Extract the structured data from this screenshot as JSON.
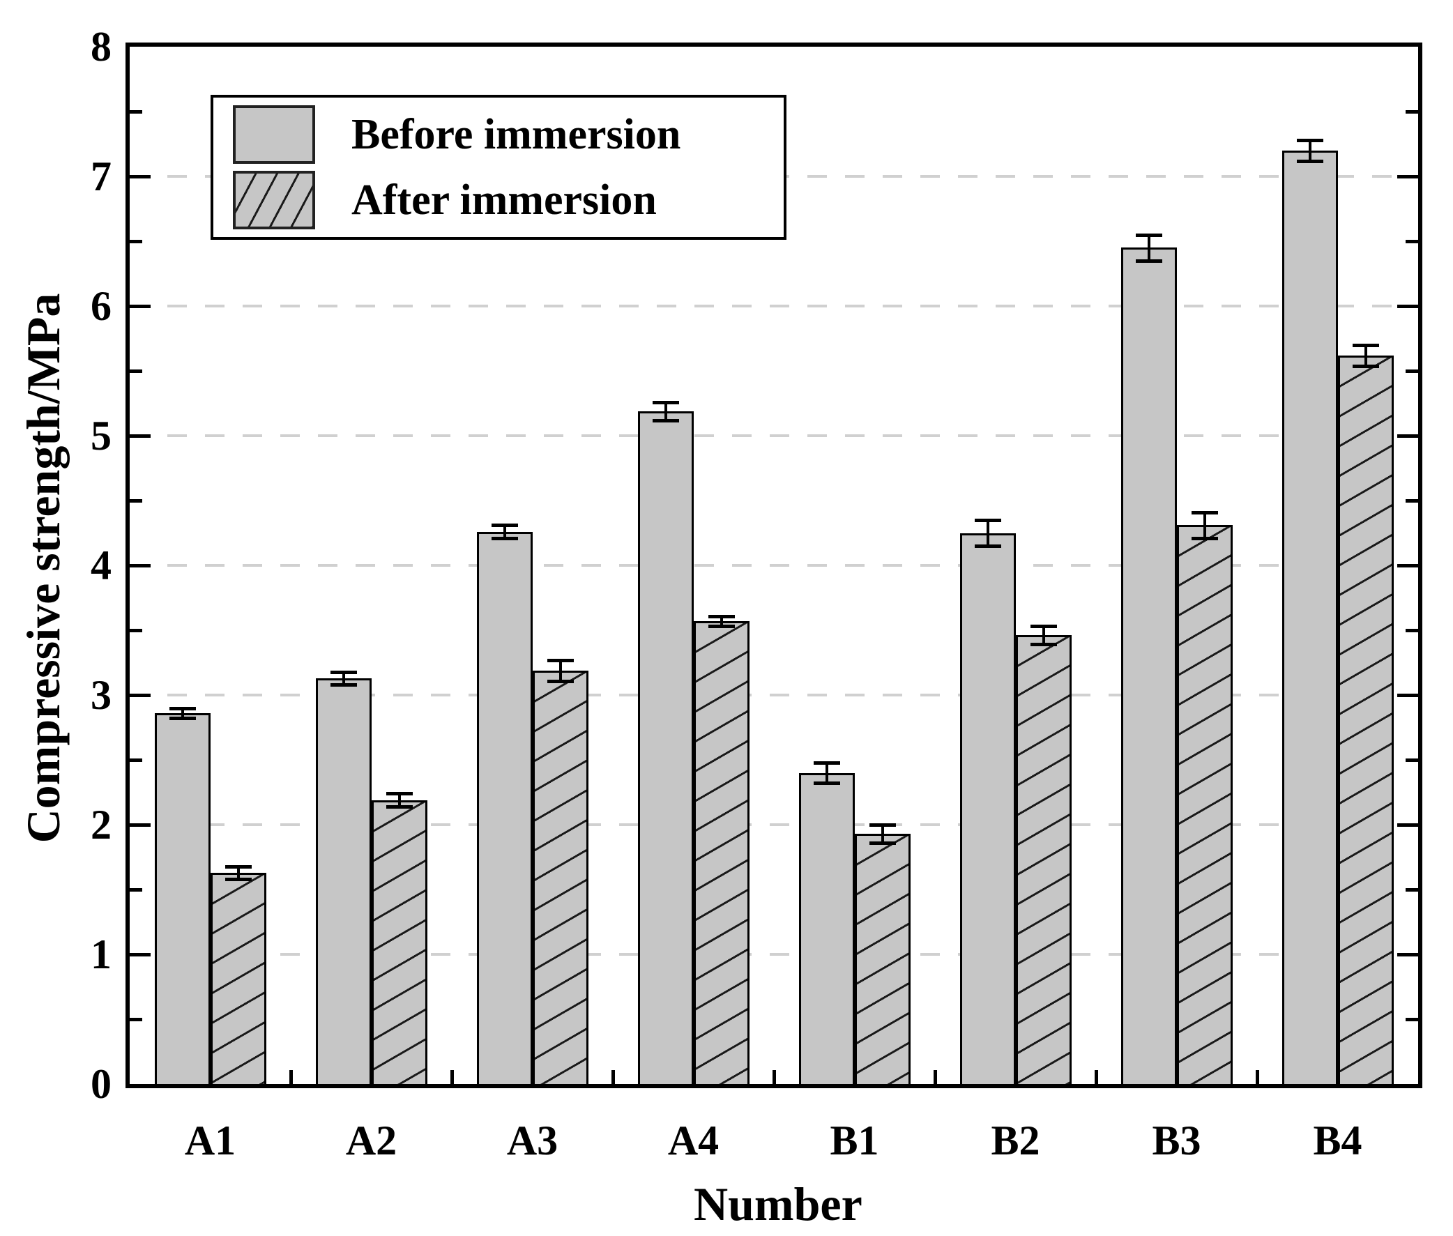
{
  "chart_data": {
    "type": "bar",
    "title": "",
    "xlabel": "Number",
    "ylabel": "Compressive strength/MPa",
    "categories": [
      "A1",
      "A2",
      "A3",
      "A4",
      "B1",
      "B2",
      "B3",
      "B4"
    ],
    "series": [
      {
        "name": "Before immersion",
        "pattern": "solid",
        "values": [
          2.86,
          3.13,
          4.26,
          5.19,
          2.4,
          4.25,
          6.45,
          7.2
        ],
        "errors": [
          0.04,
          0.05,
          0.05,
          0.07,
          0.08,
          0.1,
          0.1,
          0.08
        ]
      },
      {
        "name": "After immersion",
        "pattern": "diagonal-hatch",
        "values": [
          1.63,
          2.19,
          3.19,
          3.57,
          1.93,
          3.46,
          4.31,
          5.62
        ],
        "errors": [
          0.05,
          0.05,
          0.08,
          0.04,
          0.07,
          0.07,
          0.1,
          0.08
        ]
      }
    ],
    "ylim": [
      0,
      8
    ],
    "yticks": [
      0,
      1,
      2,
      3,
      4,
      5,
      6,
      7,
      8
    ],
    "minor_tick_step": 0.5,
    "grid": {
      "horizontal": true,
      "style": "dashed",
      "at": [
        1,
        2,
        3,
        4,
        5,
        6,
        7
      ]
    },
    "legend_position": "upper-left",
    "error_bars": true,
    "colors": {
      "bar_fill": "#c6c6c6",
      "bar_edge": "#000000",
      "hatch": "#1a1a1a",
      "grid": "#d0d0d0",
      "axis": "#000000",
      "background": "#ffffff"
    }
  }
}
